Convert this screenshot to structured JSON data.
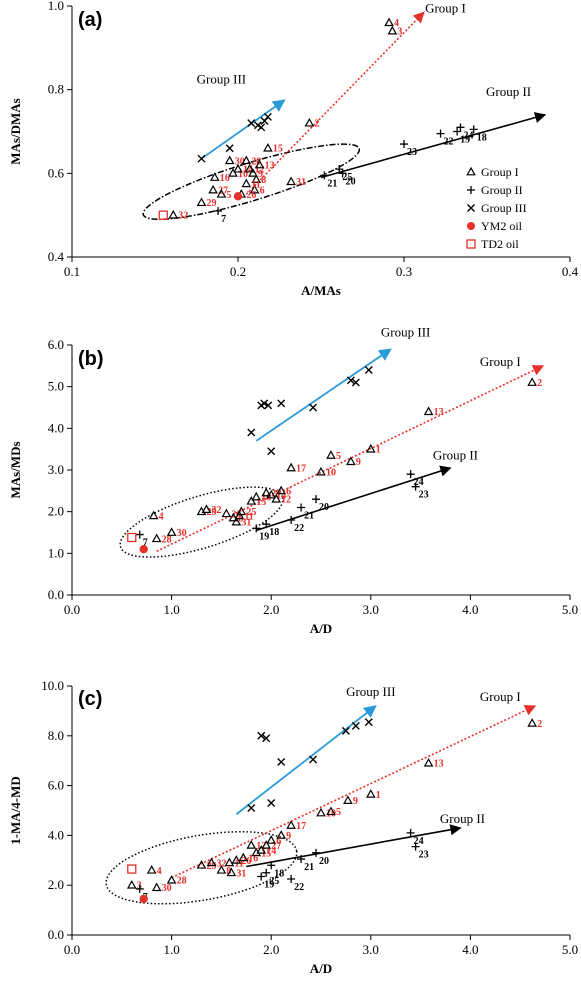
{
  "colors": {
    "group1": "#000000",
    "red": "#e8302a",
    "blue": "#2a9ad8",
    "black": "#000000"
  },
  "legend": [
    {
      "label": "Group I",
      "marker": "triangle"
    },
    {
      "label": "Group II",
      "marker": "plus"
    },
    {
      "label": "Group III",
      "marker": "cross"
    },
    {
      "label": "YM2 oil",
      "marker": "dot-red"
    },
    {
      "label": "TD2 oil",
      "marker": "square-red"
    }
  ],
  "chart_data": [
    {
      "type": "scatter",
      "panel": "(a)",
      "xlabel": "A/MAs",
      "ylabel": "MAs/DMAs",
      "xlim": [
        0.1,
        0.4
      ],
      "ylim": [
        0.4,
        1.0
      ],
      "xticks": [
        0.1,
        0.2,
        0.3,
        0.4
      ],
      "xtick_labels": [
        "0.1",
        "0.2",
        "0.3",
        "0.4"
      ],
      "yticks": [
        0.4,
        0.6,
        0.8,
        1.0
      ],
      "ytick_labels": [
        "0.4",
        "0.6",
        "0.8",
        "1.0"
      ],
      "group1": [
        [
          0.161,
          0.5,
          "32"
        ],
        [
          0.178,
          0.53,
          "29"
        ],
        [
          0.185,
          0.56,
          "27"
        ],
        [
          0.19,
          0.55,
          "5"
        ],
        [
          0.186,
          0.59,
          "16"
        ],
        [
          0.197,
          0.6,
          "10"
        ],
        [
          0.195,
          0.63,
          "30"
        ],
        [
          0.2,
          0.61,
          "14"
        ],
        [
          0.205,
          0.63,
          "28"
        ],
        [
          0.207,
          0.61,
          "12"
        ],
        [
          0.209,
          0.6,
          "9"
        ],
        [
          0.211,
          0.585,
          "8"
        ],
        [
          0.21,
          0.56,
          "6"
        ],
        [
          0.205,
          0.575,
          "11"
        ],
        [
          0.202,
          0.55,
          "26"
        ],
        [
          0.213,
          0.62,
          "13"
        ],
        [
          0.218,
          0.66,
          "15"
        ],
        [
          0.232,
          0.58,
          "31"
        ],
        [
          0.243,
          0.72,
          "2"
        ],
        [
          0.291,
          0.96,
          "4"
        ],
        [
          0.293,
          0.94,
          "3"
        ]
      ],
      "group2": [
        [
          0.188,
          0.51,
          "7"
        ],
        [
          0.252,
          0.595,
          "21"
        ],
        [
          0.261,
          0.61,
          "25"
        ],
        [
          0.263,
          0.6,
          "20"
        ],
        [
          0.3,
          0.67,
          "23"
        ],
        [
          0.322,
          0.695,
          "22"
        ],
        [
          0.332,
          0.7,
          "19"
        ],
        [
          0.334,
          0.71,
          "24"
        ],
        [
          0.342,
          0.705,
          "18"
        ]
      ],
      "group3": [
        [
          0.178,
          0.635
        ],
        [
          0.195,
          0.66
        ],
        [
          0.208,
          0.72
        ],
        [
          0.212,
          0.715
        ],
        [
          0.216,
          0.725
        ],
        [
          0.214,
          0.71
        ],
        [
          0.218,
          0.735
        ]
      ],
      "ym2": [
        [
          0.2,
          0.545
        ]
      ],
      "td2": [
        [
          0.155,
          0.5
        ]
      ],
      "trend": {
        "groupI": [
          [
            0.205,
            0.55
          ],
          [
            0.312,
            0.985
          ]
        ],
        "groupII": [
          [
            0.25,
            0.59
          ],
          [
            0.385,
            0.74
          ]
        ],
        "groupIII": [
          [
            0.178,
            0.635
          ],
          [
            0.228,
            0.775
          ]
        ]
      },
      "ellipse": {
        "cx": 0.208,
        "cy": 0.58,
        "rx": 0.068,
        "ry": 0.045,
        "rot": -17
      },
      "group_labels": [
        {
          "text": "Group I",
          "x": 0.325,
          "y": 0.985
        },
        {
          "text": "Group II",
          "x": 0.363,
          "y": 0.785
        },
        {
          "text": "Group III",
          "x": 0.19,
          "y": 0.815
        }
      ]
    },
    {
      "type": "scatter",
      "panel": "(b)",
      "xlabel": "A/D",
      "ylabel": "MAs/MDs",
      "xlim": [
        0,
        5
      ],
      "ylim": [
        0,
        6
      ],
      "xticks": [
        0,
        1,
        2,
        3,
        4,
        5
      ],
      "xtick_labels": [
        "0.0",
        "1.0",
        "2.0",
        "3.0",
        "4.0",
        "5.0"
      ],
      "yticks": [
        0,
        1,
        2,
        3,
        4,
        5,
        6
      ],
      "ytick_labels": [
        "0.0",
        "1.0",
        "2.0",
        "3.0",
        "4.0",
        "5.0",
        "6.0"
      ],
      "group1": [
        [
          0.82,
          1.9,
          "4"
        ],
        [
          0.85,
          1.35,
          "28"
        ],
        [
          1.0,
          1.5,
          "30"
        ],
        [
          1.3,
          2.0,
          "29"
        ],
        [
          1.35,
          2.05,
          "32"
        ],
        [
          1.55,
          1.95,
          "26"
        ],
        [
          1.62,
          1.85,
          "8"
        ],
        [
          1.65,
          1.75,
          "31"
        ],
        [
          1.68,
          1.9,
          "11"
        ],
        [
          1.7,
          2.0,
          "25"
        ],
        [
          1.8,
          2.25,
          "15"
        ],
        [
          1.85,
          2.35,
          "16"
        ],
        [
          1.95,
          2.45,
          "27"
        ],
        [
          2.0,
          2.4,
          "14"
        ],
        [
          2.05,
          2.3,
          "12"
        ],
        [
          2.1,
          2.5,
          "6"
        ],
        [
          2.2,
          3.05,
          "17"
        ],
        [
          2.5,
          2.95,
          "10"
        ],
        [
          2.6,
          3.35,
          "5"
        ],
        [
          2.8,
          3.2,
          "9"
        ],
        [
          3.0,
          3.5,
          "1"
        ],
        [
          3.58,
          4.4,
          "13"
        ],
        [
          4.62,
          5.1,
          "2"
        ]
      ],
      "group2": [
        [
          0.68,
          1.45,
          "7"
        ],
        [
          1.85,
          1.6,
          "19"
        ],
        [
          1.95,
          1.7,
          "18"
        ],
        [
          2.2,
          1.8,
          "22"
        ],
        [
          2.3,
          2.1,
          "21"
        ],
        [
          2.45,
          2.3,
          "20"
        ],
        [
          3.4,
          2.9,
          "24"
        ],
        [
          3.45,
          2.6,
          "23"
        ]
      ],
      "group3": [
        [
          1.8,
          3.9
        ],
        [
          1.9,
          4.55
        ],
        [
          1.93,
          4.6
        ],
        [
          1.97,
          4.55
        ],
        [
          2.0,
          3.45
        ],
        [
          2.1,
          4.6
        ],
        [
          2.42,
          4.5
        ],
        [
          2.8,
          5.15
        ],
        [
          2.85,
          5.1
        ],
        [
          2.98,
          5.4
        ]
      ],
      "ym2": [
        [
          0.72,
          1.1
        ]
      ],
      "td2": [
        [
          0.6,
          1.38
        ]
      ],
      "trend": {
        "groupI": [
          [
            0.85,
            1.05
          ],
          [
            4.73,
            5.5
          ]
        ],
        "groupII": [
          [
            1.85,
            1.55
          ],
          [
            3.8,
            3.05
          ]
        ],
        "groupIII": [
          [
            1.85,
            3.7
          ],
          [
            3.2,
            5.9
          ]
        ]
      },
      "ellipse": {
        "cx": 1.3,
        "cy": 1.75,
        "rx": 0.85,
        "ry": 0.62,
        "rot": -17
      },
      "group_labels": [
        {
          "text": "Group I",
          "x": 4.3,
          "y": 5.5
        },
        {
          "text": "Group II",
          "x": 3.85,
          "y": 3.25
        },
        {
          "text": "Group III",
          "x": 3.35,
          "y": 6.2
        }
      ]
    },
    {
      "type": "scatter",
      "panel": "(c)",
      "xlabel": "A/D",
      "ylabel": "1-MA/4-MD",
      "xlim": [
        0,
        5
      ],
      "ylim": [
        0,
        10
      ],
      "xticks": [
        0,
        1,
        2,
        3,
        4,
        5
      ],
      "xtick_labels": [
        "0.0",
        "1.0",
        "2.0",
        "3.0",
        "4.0",
        "5.0"
      ],
      "yticks": [
        0,
        2,
        4,
        6,
        8,
        10
      ],
      "ytick_labels": [
        "0.0",
        "2.0",
        "4.0",
        "6.0",
        "8.0",
        "10.0"
      ],
      "group1": [
        [
          0.6,
          2.0,
          "3"
        ],
        [
          0.8,
          2.6,
          "4"
        ],
        [
          0.85,
          1.9,
          "30"
        ],
        [
          1.0,
          2.2,
          "28"
        ],
        [
          1.3,
          2.8,
          "29"
        ],
        [
          1.4,
          2.9,
          "32"
        ],
        [
          1.5,
          2.6,
          "8"
        ],
        [
          1.58,
          2.9,
          "11"
        ],
        [
          1.6,
          2.5,
          "31"
        ],
        [
          1.65,
          3.0,
          "26"
        ],
        [
          1.72,
          3.1,
          "16"
        ],
        [
          1.8,
          3.6,
          "12"
        ],
        [
          1.85,
          3.3,
          "15"
        ],
        [
          1.9,
          3.4,
          "14"
        ],
        [
          1.95,
          3.6,
          "27"
        ],
        [
          2.0,
          3.8,
          "6"
        ],
        [
          2.1,
          4.0,
          "9"
        ],
        [
          2.2,
          4.4,
          "17"
        ],
        [
          2.5,
          4.9,
          "10"
        ],
        [
          2.6,
          4.95,
          "5"
        ],
        [
          2.77,
          5.4,
          "9"
        ],
        [
          3.0,
          5.65,
          "1"
        ],
        [
          3.58,
          6.9,
          "13"
        ],
        [
          4.62,
          8.5,
          "2"
        ]
      ],
      "group2": [
        [
          0.68,
          1.85,
          "7"
        ],
        [
          1.9,
          2.35,
          "19"
        ],
        [
          1.95,
          2.5,
          "25"
        ],
        [
          2.0,
          2.8,
          "18"
        ],
        [
          2.2,
          2.25,
          "22"
        ],
        [
          2.3,
          3.05,
          "21"
        ],
        [
          2.45,
          3.3,
          "20"
        ],
        [
          3.4,
          4.1,
          "24"
        ],
        [
          3.45,
          3.55,
          "23"
        ]
      ],
      "group3": [
        [
          1.8,
          5.1
        ],
        [
          1.9,
          8.0
        ],
        [
          1.95,
          7.9
        ],
        [
          2.0,
          5.3
        ],
        [
          2.1,
          6.95
        ],
        [
          2.42,
          7.05
        ],
        [
          2.75,
          8.2
        ],
        [
          2.85,
          8.4
        ],
        [
          2.98,
          8.55
        ]
      ],
      "ym2": [
        [
          0.72,
          1.45
        ]
      ],
      "td2": [
        [
          0.6,
          2.65
        ]
      ],
      "trend": {
        "groupI": [
          [
            1.0,
            2.3
          ],
          [
            4.65,
            9.2
          ]
        ],
        "groupII": [
          [
            1.75,
            2.75
          ],
          [
            3.9,
            4.3
          ]
        ],
        "groupIII": [
          [
            1.65,
            4.85
          ],
          [
            3.05,
            9.2
          ]
        ]
      },
      "ellipse": {
        "cx": 1.3,
        "cy": 2.7,
        "rx": 0.97,
        "ry": 1.3,
        "rot": -10
      },
      "group_labels": [
        {
          "text": "Group I",
          "x": 4.3,
          "y": 9.4
        },
        {
          "text": "Group II",
          "x": 3.92,
          "y": 4.5
        },
        {
          "text": "Group III",
          "x": 3.0,
          "y": 9.6
        }
      ]
    }
  ]
}
